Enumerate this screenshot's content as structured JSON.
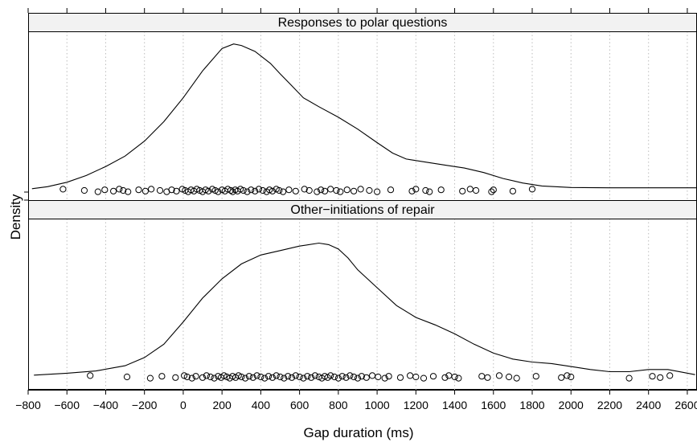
{
  "chart_data": {
    "type": "density-stripplot",
    "xlabel": "Gap duration (ms)",
    "ylabel": "Density",
    "xlim": [
      -800,
      2650
    ],
    "x_ticks": [
      -800,
      -600,
      -400,
      -200,
      0,
      200,
      400,
      600,
      800,
      1000,
      1200,
      1400,
      1600,
      1800,
      2000,
      2200,
      2400,
      2600
    ],
    "vertical_grid": "dotted",
    "panels": [
      {
        "strip_label": "Responses to polar questions",
        "density_curve": [
          [
            -780,
            0.012
          ],
          [
            -700,
            0.025
          ],
          [
            -600,
            0.055
          ],
          [
            -500,
            0.1
          ],
          [
            -400,
            0.16
          ],
          [
            -300,
            0.23
          ],
          [
            -200,
            0.33
          ],
          [
            -100,
            0.46
          ],
          [
            0,
            0.62
          ],
          [
            100,
            0.8
          ],
          [
            200,
            0.95
          ],
          [
            260,
            0.98
          ],
          [
            300,
            0.97
          ],
          [
            370,
            0.93
          ],
          [
            450,
            0.85
          ],
          [
            500,
            0.78
          ],
          [
            560,
            0.7
          ],
          [
            620,
            0.62
          ],
          [
            700,
            0.56
          ],
          [
            800,
            0.49
          ],
          [
            900,
            0.41
          ],
          [
            1000,
            0.32
          ],
          [
            1080,
            0.25
          ],
          [
            1150,
            0.21
          ],
          [
            1250,
            0.19
          ],
          [
            1350,
            0.17
          ],
          [
            1450,
            0.15
          ],
          [
            1550,
            0.12
          ],
          [
            1650,
            0.08
          ],
          [
            1750,
            0.05
          ],
          [
            1850,
            0.03
          ],
          [
            2000,
            0.02
          ],
          [
            2200,
            0.018
          ],
          [
            2400,
            0.018
          ],
          [
            2650,
            0.018
          ]
        ],
        "observations": [
          -620,
          -510,
          -440,
          -405,
          -360,
          -330,
          -310,
          -285,
          -230,
          -195,
          -165,
          -120,
          -85,
          -60,
          -35,
          -5,
          10,
          25,
          40,
          55,
          70,
          85,
          100,
          115,
          130,
          150,
          165,
          180,
          200,
          215,
          230,
          245,
          255,
          268,
          280,
          295,
          310,
          330,
          350,
          370,
          390,
          410,
          430,
          445,
          460,
          480,
          495,
          515,
          545,
          580,
          625,
          650,
          690,
          710,
          730,
          760,
          790,
          810,
          845,
          880,
          915,
          960,
          1000,
          1070,
          1180,
          1200,
          1250,
          1270,
          1330,
          1440,
          1480,
          1510,
          1590,
          1600,
          1700,
          1800
        ]
      },
      {
        "strip_label": "Other−initiations of repair",
        "density_curve": [
          [
            -770,
            0.012
          ],
          [
            -600,
            0.025
          ],
          [
            -450,
            0.04
          ],
          [
            -300,
            0.075
          ],
          [
            -200,
            0.13
          ],
          [
            -100,
            0.22
          ],
          [
            0,
            0.37
          ],
          [
            100,
            0.53
          ],
          [
            200,
            0.66
          ],
          [
            300,
            0.76
          ],
          [
            400,
            0.82
          ],
          [
            500,
            0.85
          ],
          [
            600,
            0.88
          ],
          [
            700,
            0.9
          ],
          [
            750,
            0.89
          ],
          [
            800,
            0.86
          ],
          [
            850,
            0.8
          ],
          [
            900,
            0.72
          ],
          [
            1000,
            0.6
          ],
          [
            1100,
            0.48
          ],
          [
            1200,
            0.4
          ],
          [
            1300,
            0.35
          ],
          [
            1400,
            0.29
          ],
          [
            1500,
            0.22
          ],
          [
            1600,
            0.16
          ],
          [
            1700,
            0.12
          ],
          [
            1800,
            0.1
          ],
          [
            1900,
            0.09
          ],
          [
            2000,
            0.07
          ],
          [
            2100,
            0.05
          ],
          [
            2200,
            0.035
          ],
          [
            2300,
            0.035
          ],
          [
            2400,
            0.05
          ],
          [
            2500,
            0.05
          ],
          [
            2580,
            0.03
          ],
          [
            2640,
            0.015
          ]
        ],
        "observations": [
          -480,
          -290,
          -170,
          -110,
          -40,
          5,
          20,
          45,
          65,
          100,
          120,
          140,
          160,
          180,
          195,
          210,
          225,
          240,
          255,
          270,
          285,
          300,
          320,
          340,
          360,
          380,
          400,
          420,
          440,
          460,
          480,
          500,
          520,
          540,
          560,
          580,
          600,
          620,
          640,
          660,
          680,
          700,
          715,
          730,
          745,
          760,
          780,
          800,
          820,
          840,
          860,
          880,
          900,
          920,
          945,
          975,
          1005,
          1040,
          1060,
          1120,
          1170,
          1200,
          1240,
          1290,
          1350,
          1370,
          1400,
          1420,
          1540,
          1570,
          1630,
          1680,
          1720,
          1820,
          1950,
          1980,
          2000,
          2300,
          2420,
          2460,
          2510
        ]
      }
    ]
  }
}
